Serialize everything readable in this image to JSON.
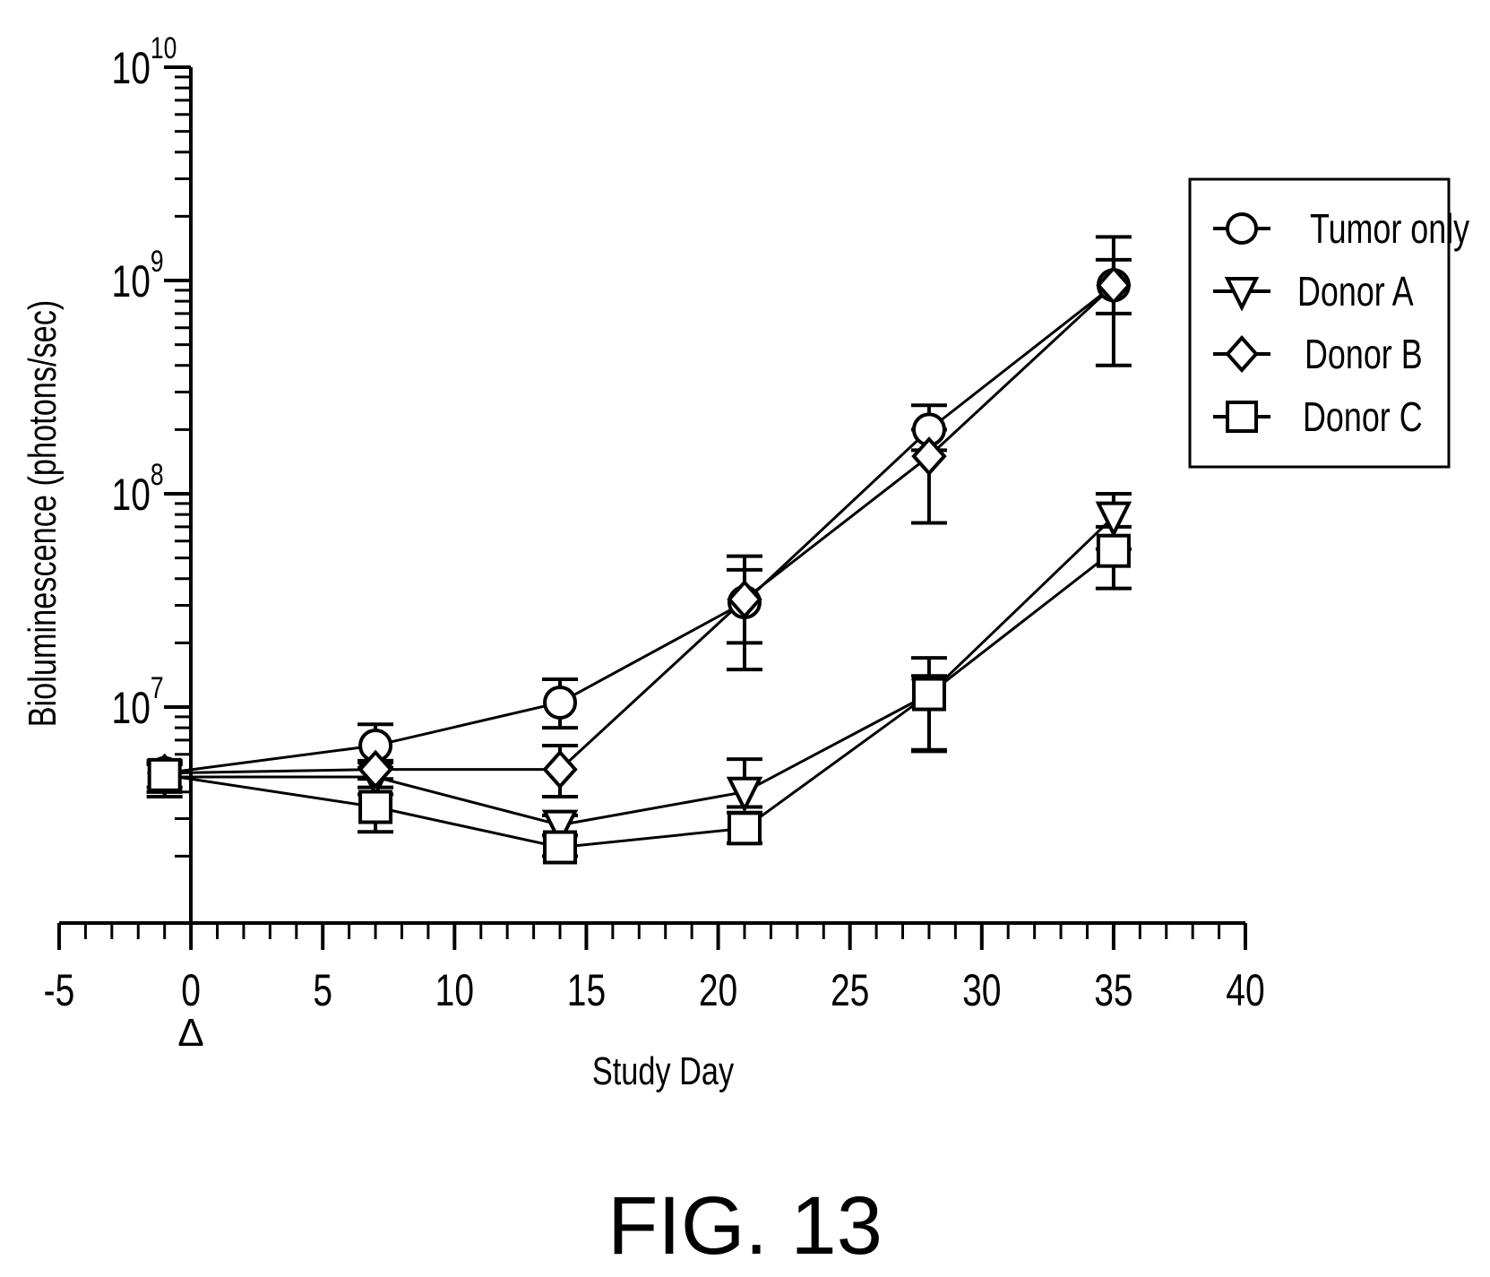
{
  "figure_label": "FIG. 13",
  "chart_data": {
    "type": "line",
    "xlabel": "Study Day",
    "ylabel": "Bioluminescence (photons/sec)",
    "xlim": [
      -5,
      40
    ],
    "xticks": [
      -5,
      0,
      5,
      10,
      15,
      20,
      25,
      30,
      35,
      40
    ],
    "y_scale": "log",
    "ylim": [
      1600000,
      10000000000
    ],
    "yticks": [
      {
        "value": 10000000,
        "base": "10",
        "exp": "7"
      },
      {
        "value": 100000000,
        "base": "10",
        "exp": "8"
      },
      {
        "value": 1000000000,
        "base": "10",
        "exp": "9"
      },
      {
        "value": 10000000000,
        "base": "10",
        "exp": "10"
      }
    ],
    "annotation": {
      "symbol": "triangle-open",
      "x": 0,
      "label": "Δ"
    },
    "legend": {
      "position": "top-right"
    },
    "series": [
      {
        "name": "Tumor only",
        "marker": "circle",
        "points": [
          {
            "x": -1,
            "y": 4900000,
            "err_low": 3800000,
            "err_high": 5600000
          },
          {
            "x": 7,
            "y": 6600000,
            "err_low": 5500000,
            "err_high": 8300000
          },
          {
            "x": 14,
            "y": 10500000,
            "err_low": 8000000,
            "err_high": 13500000
          },
          {
            "x": 21,
            "y": 31000000,
            "err_low": 20000000,
            "err_high": 51000000
          },
          {
            "x": 28,
            "y": 200000000,
            "err_low": 160000000,
            "err_high": 260000000
          },
          {
            "x": 35,
            "y": 950000000,
            "err_low": 700000000,
            "err_high": 1600000000
          }
        ]
      },
      {
        "name": "Donor A",
        "marker": "triangle-down",
        "points": [
          {
            "x": -1,
            "y": 4700000,
            "err_low": 4000000,
            "err_high": 5400000
          },
          {
            "x": 7,
            "y": 4700000,
            "err_low": 4200000,
            "err_high": 5200000
          },
          {
            "x": 14,
            "y": 2800000,
            "err_low": 2500000,
            "err_high": 3100000
          },
          {
            "x": 21,
            "y": 4000000,
            "err_low": 3400000,
            "err_high": 5700000
          },
          {
            "x": 28,
            "y": 11500000,
            "err_low": 6300000,
            "err_high": 17000000
          },
          {
            "x": 35,
            "y": 78000000,
            "err_low": 55000000,
            "err_high": 100000000
          }
        ]
      },
      {
        "name": "Donor B",
        "marker": "diamond",
        "points": [
          {
            "x": -1,
            "y": 4900000,
            "err_low": 4200000,
            "err_high": 5500000
          },
          {
            "x": 7,
            "y": 5100000,
            "err_low": 4600000,
            "err_high": 5600000
          },
          {
            "x": 14,
            "y": 5100000,
            "err_low": 3800000,
            "err_high": 6600000
          },
          {
            "x": 21,
            "y": 32000000,
            "err_low": 15000000,
            "err_high": 44000000
          },
          {
            "x": 28,
            "y": 150000000,
            "err_low": 73000000,
            "err_high": 200000000
          },
          {
            "x": 35,
            "y": 950000000,
            "err_low": 400000000,
            "err_high": 1250000000
          }
        ]
      },
      {
        "name": "Donor C",
        "marker": "square",
        "points": [
          {
            "x": -1,
            "y": 4800000,
            "err_low": 4000000,
            "err_high": 5400000
          },
          {
            "x": 7,
            "y": 3400000,
            "err_low": 2600000,
            "err_high": 3900000
          },
          {
            "x": 14,
            "y": 2200000,
            "err_low": 2000000,
            "err_high": 2500000
          },
          {
            "x": 21,
            "y": 2700000,
            "err_low": 2300000,
            "err_high": 3200000
          },
          {
            "x": 28,
            "y": 11500000,
            "err_low": 6200000,
            "err_high": 14000000
          },
          {
            "x": 35,
            "y": 54000000,
            "err_low": 36000000,
            "err_high": 70000000
          }
        ]
      }
    ]
  }
}
